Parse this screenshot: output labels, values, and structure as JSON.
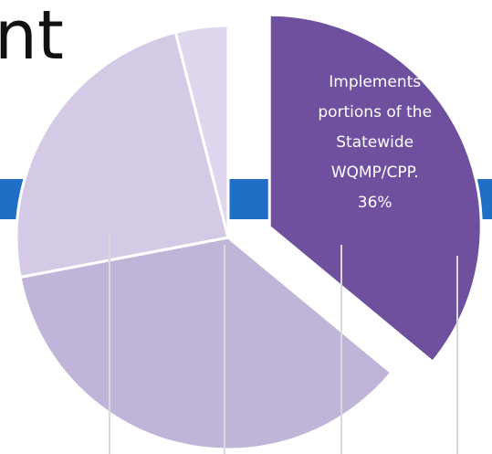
{
  "chart_data": {
    "type": "pie",
    "title": "nt",
    "categories": [
      "Implements portions of the Statewide WQMP/CPP.",
      null,
      null,
      null
    ],
    "values": [
      36,
      36,
      24,
      4
    ],
    "value_labels": [
      "36%",
      null,
      null,
      null
    ],
    "colors": [
      "#6f509f",
      "#c1b4d9",
      "#d4cae6",
      "#ddd6ed"
    ],
    "explode": [
      true,
      false,
      false,
      false
    ]
  }
}
